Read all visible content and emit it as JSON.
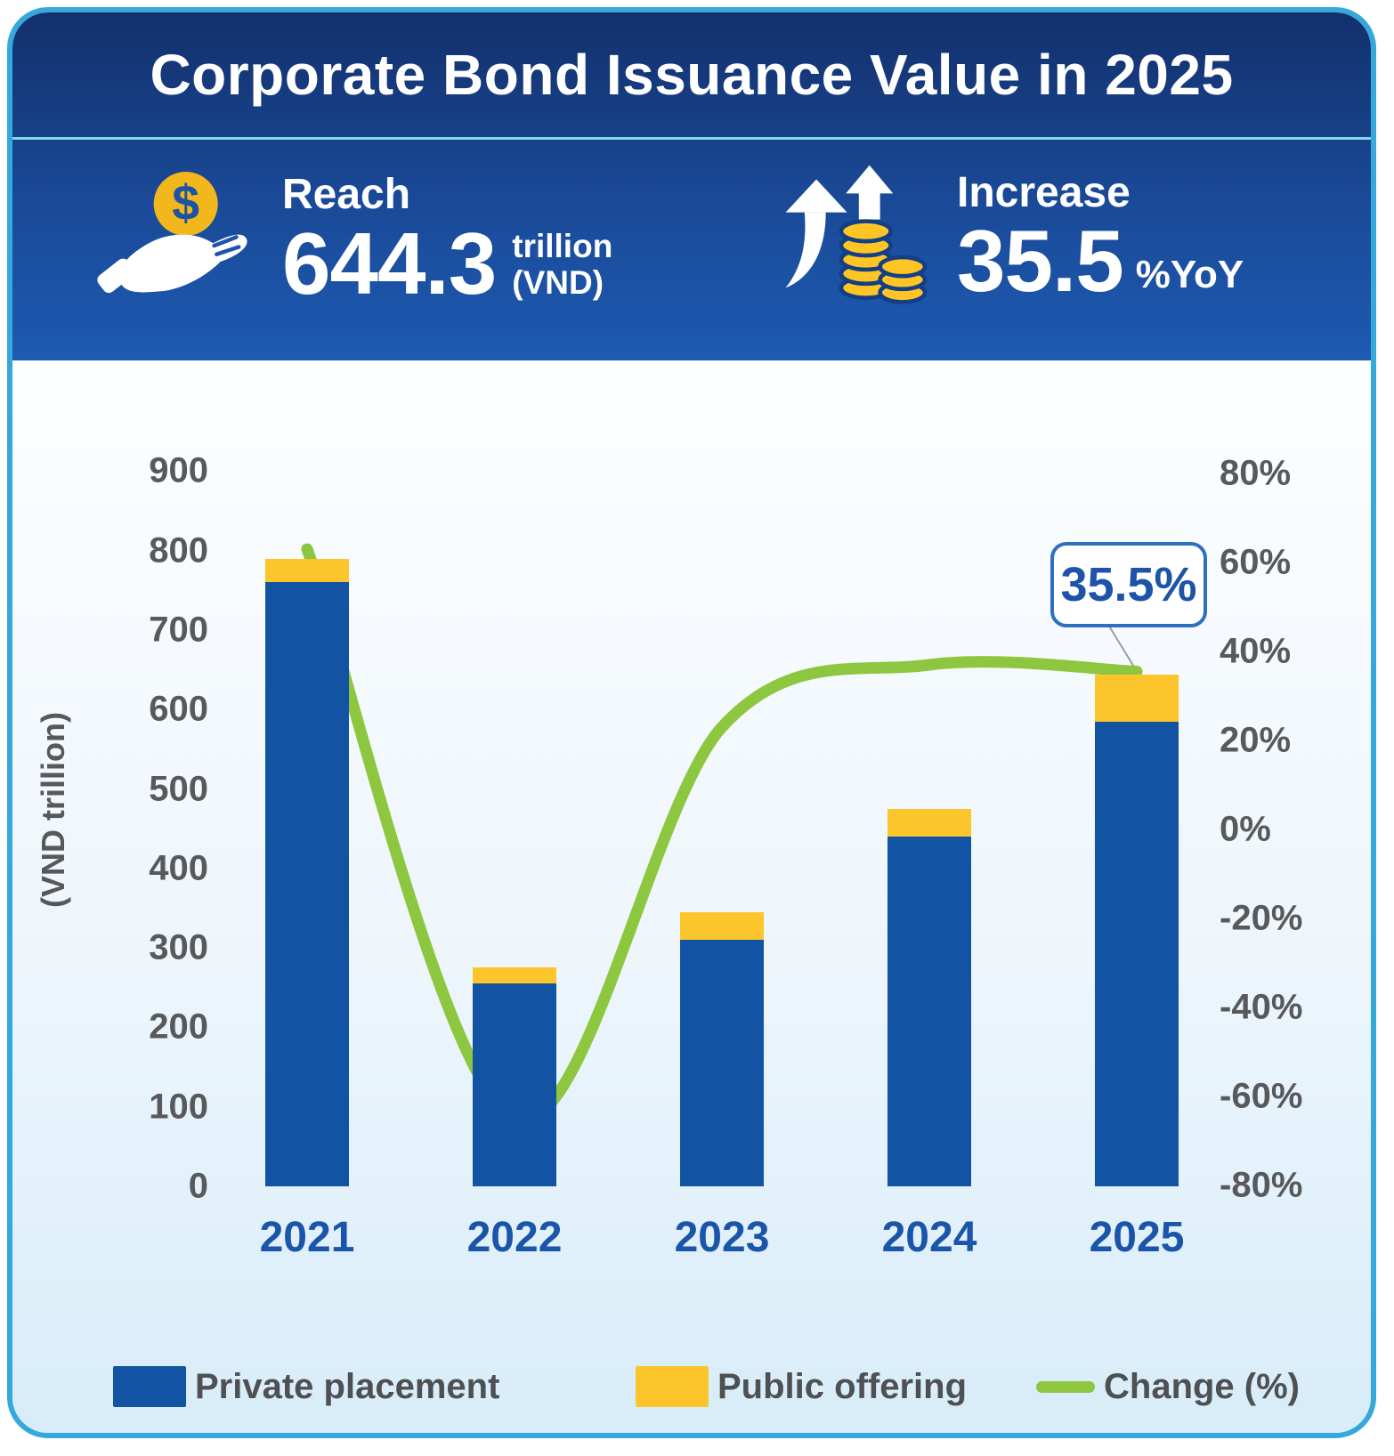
{
  "header": {
    "title": "Corporate Bond Issuance Value in 2025",
    "stats": [
      {
        "icon": "hand-coin-icon",
        "label": "Reach",
        "value": "644.3",
        "unit_top": "trillion",
        "unit_bottom": "(VND)"
      },
      {
        "icon": "coins-up-icon",
        "label": "Increase",
        "value": "35.5",
        "unit": "%YoY"
      }
    ]
  },
  "chart_data": {
    "type": "combo (stacked bar + line)",
    "categories": [
      "2021",
      "2022",
      "2023",
      "2024",
      "2025"
    ],
    "series": [
      {
        "name": "Private placement",
        "type": "bar",
        "stack": "issuance",
        "color": "#1254a3",
        "values": [
          760,
          255,
          310,
          440,
          585
        ]
      },
      {
        "name": "Public offering",
        "type": "bar",
        "stack": "issuance",
        "color": "#fdc52c",
        "values": [
          30,
          20,
          35,
          35,
          59.3
        ]
      },
      {
        "name": "Change (%)",
        "type": "line",
        "axis": "right",
        "color": "#8dc63f",
        "values": [
          63,
          -65,
          23,
          37,
          35.5
        ]
      }
    ],
    "left_axis": {
      "title": "(VND trillion)",
      "min": 0,
      "max": 900,
      "step": 100,
      "ticks": [
        {
          "label": "900",
          "value": 900
        },
        {
          "label": "800",
          "value": 800
        },
        {
          "label": "700",
          "value": 700
        },
        {
          "label": "600",
          "value": 600
        },
        {
          "label": "500",
          "value": 500
        },
        {
          "label": "400",
          "value": 400
        },
        {
          "label": "300",
          "value": 300
        },
        {
          "label": "200",
          "value": 200
        },
        {
          "label": "100",
          "value": 100
        },
        {
          "label": "0",
          "value": 0
        }
      ]
    },
    "right_axis": {
      "min": -80,
      "max": 80,
      "step": 20,
      "ticks": [
        {
          "label": "80%",
          "value": 80
        },
        {
          "label": "60%",
          "value": 60
        },
        {
          "label": "40%",
          "value": 40
        },
        {
          "label": "20%",
          "value": 20
        },
        {
          "label": "0%",
          "value": 0
        },
        {
          "label": "-20%",
          "value": -20
        },
        {
          "label": "-40%",
          "value": -40
        },
        {
          "label": "-60%",
          "value": -60
        },
        {
          "label": "-80%",
          "value": -80
        }
      ]
    },
    "callout": {
      "text": "35.5%",
      "year": "2025"
    },
    "legend": [
      {
        "label": "Private placement",
        "swatch": "blue-rect"
      },
      {
        "label": "Public offering",
        "swatch": "yellow-rect"
      },
      {
        "label": "Change (%)",
        "swatch": "green-line"
      }
    ],
    "grid": "off",
    "legend_position": "bottom"
  },
  "colors": {
    "card_border": "#35a8dc",
    "header_gradient_top": "#13306c",
    "header_gradient_bottom": "#1d5ab1",
    "bar_private": "#1254a3",
    "bar_public": "#fdc52c",
    "line_change": "#8dc63f",
    "year_label": "#1b55a9",
    "tick_label": "#58595b",
    "callout_text": "#1d53a8"
  }
}
